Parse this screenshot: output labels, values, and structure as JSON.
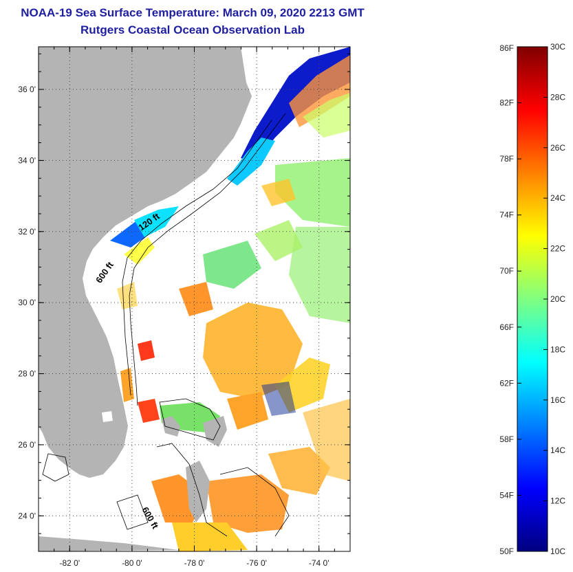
{
  "header": {
    "title": "NOAA-19 Sea Surface Temperature:  March 09, 2020 2213 GMT",
    "subtitle": "Rutgers Coastal Ocean Observation Lab"
  },
  "map": {
    "lon_range": [
      -83,
      -73
    ],
    "lat_range": [
      23,
      37.2
    ],
    "lat_ticks": [
      {
        "value": 36,
        "label": "36 0'"
      },
      {
        "value": 34,
        "label": "34 0'"
      },
      {
        "value": 32,
        "label": "32 0'"
      },
      {
        "value": 30,
        "label": "30 0'"
      },
      {
        "value": 28,
        "label": "28 0'"
      },
      {
        "value": 26,
        "label": "26 0'"
      },
      {
        "value": 24,
        "label": "24 0'"
      }
    ],
    "lon_ticks": [
      {
        "value": -82,
        "label": "-82 0'"
      },
      {
        "value": -80,
        "label": "-80 0'"
      },
      {
        "value": -78,
        "label": "-78 0'"
      },
      {
        "value": -76,
        "label": "-76 0'"
      },
      {
        "value": -74,
        "label": "-74 0'"
      }
    ],
    "contour_labels": [
      {
        "text": "120 ft",
        "lon": -79.4,
        "lat": 32.2,
        "rotate": -35
      },
      {
        "text": "600 ft",
        "lon": -80.8,
        "lat": 30.8,
        "rotate": -55
      },
      {
        "text": "600 ft",
        "lon": -79.5,
        "lat": 23.9,
        "rotate": 60
      }
    ],
    "colors": {
      "land": "#b4b4b4",
      "no_data": "#ffffff",
      "grid": "#444444"
    }
  },
  "colorbar": {
    "fahrenheit_ticks": [
      "86F",
      "82F",
      "78F",
      "74F",
      "70F",
      "66F",
      "62F",
      "58F",
      "54F",
      "50F"
    ],
    "celsius_ticks": [
      "30C",
      "28C",
      "26C",
      "24C",
      "22C",
      "20C",
      "18C",
      "16C",
      "14C",
      "12C",
      "10C"
    ],
    "range_c": [
      10,
      30
    ],
    "gradient_bottom_to_top": [
      "#00007f",
      "#0000ff",
      "#0080ff",
      "#00ffff",
      "#80ff80",
      "#ffff00",
      "#ff8000",
      "#ff0000",
      "#7f0000"
    ]
  }
}
